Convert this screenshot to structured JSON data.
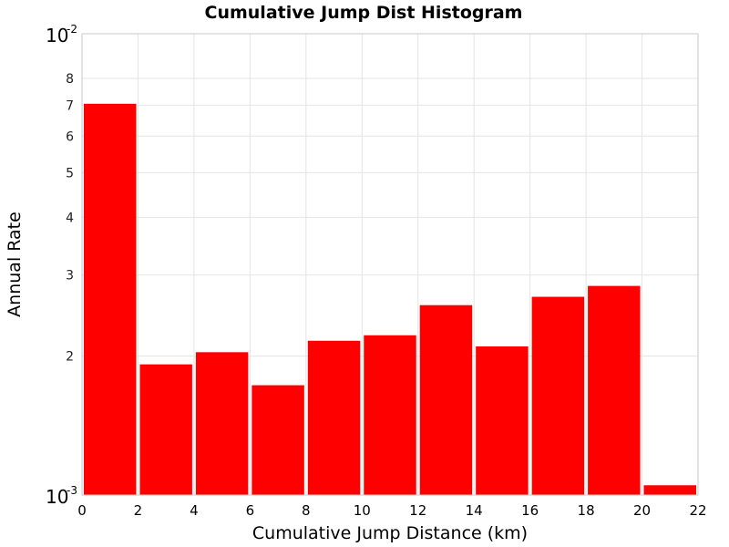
{
  "chart_data": {
    "type": "bar",
    "title": "Cumulative Jump Dist Histogram",
    "xlabel": "Cumulative Jump Distance (km)",
    "ylabel": "Annual Rate",
    "x_axis": {
      "range": [
        0,
        22
      ],
      "ticks": [
        0,
        2,
        4,
        6,
        8,
        10,
        12,
        14,
        16,
        18,
        20,
        22
      ],
      "grid": true
    },
    "y_axis": {
      "scale": "log",
      "range": [
        0.001,
        0.01
      ],
      "major_ticks": [
        {
          "value": 0.001,
          "base": "10",
          "exp": "-3"
        },
        {
          "value": 0.01,
          "base": "10",
          "exp": "-2"
        }
      ],
      "minor_ticks": [
        {
          "value": 0.002,
          "label": "2"
        },
        {
          "value": 0.003,
          "label": "3"
        },
        {
          "value": 0.004,
          "label": "4"
        },
        {
          "value": 0.005,
          "label": "5"
        },
        {
          "value": 0.006,
          "label": "6"
        },
        {
          "value": 0.007,
          "label": "7"
        },
        {
          "value": 0.008,
          "label": "8"
        }
      ],
      "grid": true
    },
    "bars": [
      {
        "x_start": 0,
        "x_end": 2,
        "value": 0.00705
      },
      {
        "x_start": 2,
        "x_end": 4,
        "value": 0.00192
      },
      {
        "x_start": 4,
        "x_end": 6,
        "value": 0.00204
      },
      {
        "x_start": 6,
        "x_end": 8,
        "value": 0.00173
      },
      {
        "x_start": 8,
        "x_end": 10,
        "value": 0.00216
      },
      {
        "x_start": 10,
        "x_end": 12,
        "value": 0.00222
      },
      {
        "x_start": 12,
        "x_end": 14,
        "value": 0.00258
      },
      {
        "x_start": 14,
        "x_end": 16,
        "value": 0.0021
      },
      {
        "x_start": 16,
        "x_end": 18,
        "value": 0.00269
      },
      {
        "x_start": 18,
        "x_end": 20,
        "value": 0.00284
      },
      {
        "x_start": 20,
        "x_end": 22,
        "value": 0.00105
      }
    ],
    "bar_color": "#ff0000",
    "grid_color": "#e4e4e4",
    "frame_color": "#c8c8c8"
  }
}
